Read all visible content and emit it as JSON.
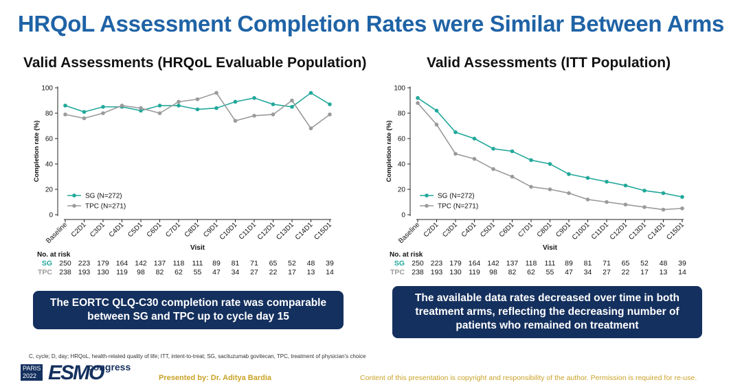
{
  "title": "HRQoL Assessment Completion Rates were Similar Between Arms",
  "colors": {
    "sg": "#21a89a",
    "tpc": "#9a9a9a",
    "title": "#1f63a6",
    "callout": "#14305e",
    "footer": "#c9a227"
  },
  "chart_data": [
    {
      "type": "line",
      "title": "Valid Assessments (HRQoL Evaluable Population)",
      "xlabel": "Visit",
      "ylabel": "Completion rate (%)",
      "ylim": [
        0,
        100
      ],
      "yticks": [
        "0",
        "20",
        "40",
        "60",
        "80",
        "100"
      ],
      "categories": [
        "Baseline",
        "C2D1",
        "C3D1",
        "C4D1",
        "C5D1",
        "C6D1",
        "C7D1",
        "C8D1",
        "C9D1",
        "C10D1",
        "C11D1",
        "C12D1",
        "C13D1",
        "C14D1",
        "C15D1"
      ],
      "legend_position": "bottom-left",
      "series": [
        {
          "name": "SG (N=272)",
          "values": [
            86,
            81,
            85,
            85,
            82,
            86,
            86,
            83,
            84,
            89,
            92,
            87,
            85,
            96,
            87
          ]
        },
        {
          "name": "TPC (N=271)",
          "values": [
            79,
            76,
            80,
            86,
            84,
            80,
            89,
            91,
            96,
            74,
            78,
            79,
            90,
            68,
            79
          ]
        }
      ]
    },
    {
      "type": "line",
      "title": "Valid Assessments (ITT Population)",
      "xlabel": "Visit",
      "ylabel": "Completion rate (%)",
      "ylim": [
        0,
        100
      ],
      "yticks": [
        "0",
        "20",
        "40",
        "60",
        "80",
        "100"
      ],
      "categories": [
        "Baseline",
        "C2D1",
        "C3D1",
        "C4D1",
        "C5D1",
        "C6D1",
        "C7D1",
        "C8D1",
        "C9D1",
        "C10D1",
        "C11D1",
        "C12D1",
        "C13D1",
        "C14D1",
        "C15D1"
      ],
      "legend_position": "bottom-left",
      "series": [
        {
          "name": "SG (N=272)",
          "values": [
            92,
            82,
            65,
            60,
            52,
            50,
            43,
            40,
            32,
            29,
            26,
            23,
            19,
            17,
            14
          ]
        },
        {
          "name": "TPC (N=271)",
          "values": [
            88,
            71,
            48,
            44,
            36,
            30,
            22,
            20,
            17,
            12,
            10,
            8,
            6,
            4,
            5
          ]
        }
      ]
    }
  ],
  "risk_table": {
    "title": "No. at risk",
    "sg_label": "SG",
    "tpc_label": "TPC",
    "sg": [
      "250",
      "223",
      "179",
      "164",
      "142",
      "137",
      "118",
      "111",
      "89",
      "81",
      "71",
      "65",
      "52",
      "48",
      "39"
    ],
    "tpc": [
      "238",
      "193",
      "130",
      "119",
      "98",
      "82",
      "62",
      "55",
      "47",
      "34",
      "27",
      "22",
      "17",
      "13",
      "14"
    ]
  },
  "callouts": {
    "left": "The EORTC QLQ-C30 completion rate was comparable between SG and TPC up to cycle day 15",
    "right": "The available data rates decreased over time in both treatment arms, reflecting the decreasing number of patients who remained on treatment"
  },
  "footer": {
    "abbreviations": "C, cycle; D, day; HRQoL, health-related quality of life; ITT, intent-to-treat; SG, sacituzumab govitecan, TPC, treatment of physician's choice",
    "logo_city": "PARIS",
    "logo_year": "2022",
    "logo_main": "ESMO",
    "logo_sub": "congress",
    "presenter": "Presented by: Dr. Aditya Bardia",
    "copyright": "Content of this presentation is copyright and responsibility of the author. Permission is required for re-use."
  }
}
